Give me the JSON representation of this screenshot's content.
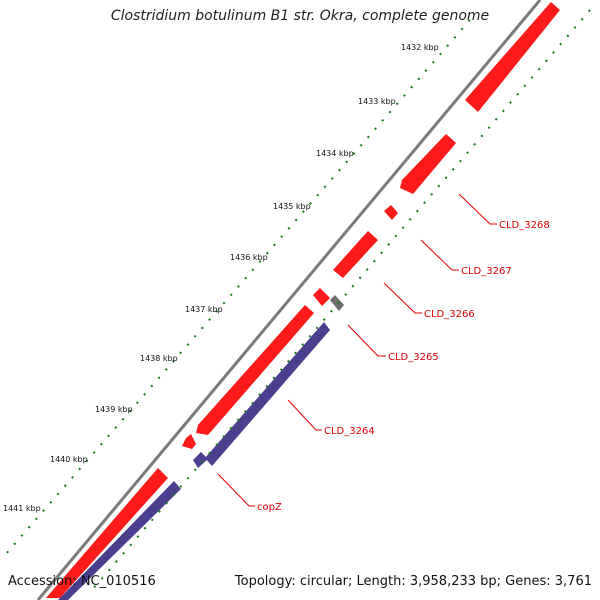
{
  "title": "Clostridium botulinum B1 str. Okra, complete genome",
  "footer": {
    "accession": "Accession: NC_010516",
    "topology": "Topology: circular; Length: 3,958,233 bp; Genes: 3,761"
  },
  "ticks": [
    "1432 kbp",
    "1433 kbp",
    "1434 kbp",
    "1435 kbp",
    "1436 kbp",
    "1437 kbp",
    "1438 kbp",
    "1439 kbp",
    "1440 kbp",
    "1441 kbp"
  ],
  "gene_labels": [
    "CLD_3268",
    "CLD_3267",
    "CLD_3266",
    "CLD_3265",
    "CLD_3264",
    "copZ"
  ],
  "colors": {
    "backbone": "#7a7a7a",
    "forward_gene": "#ff1a1a",
    "cds_track": "#4a3f8f",
    "other_feature": "#6e6e6e",
    "gc_skew": "#1a7a1a",
    "label_line": "#e00000"
  }
}
